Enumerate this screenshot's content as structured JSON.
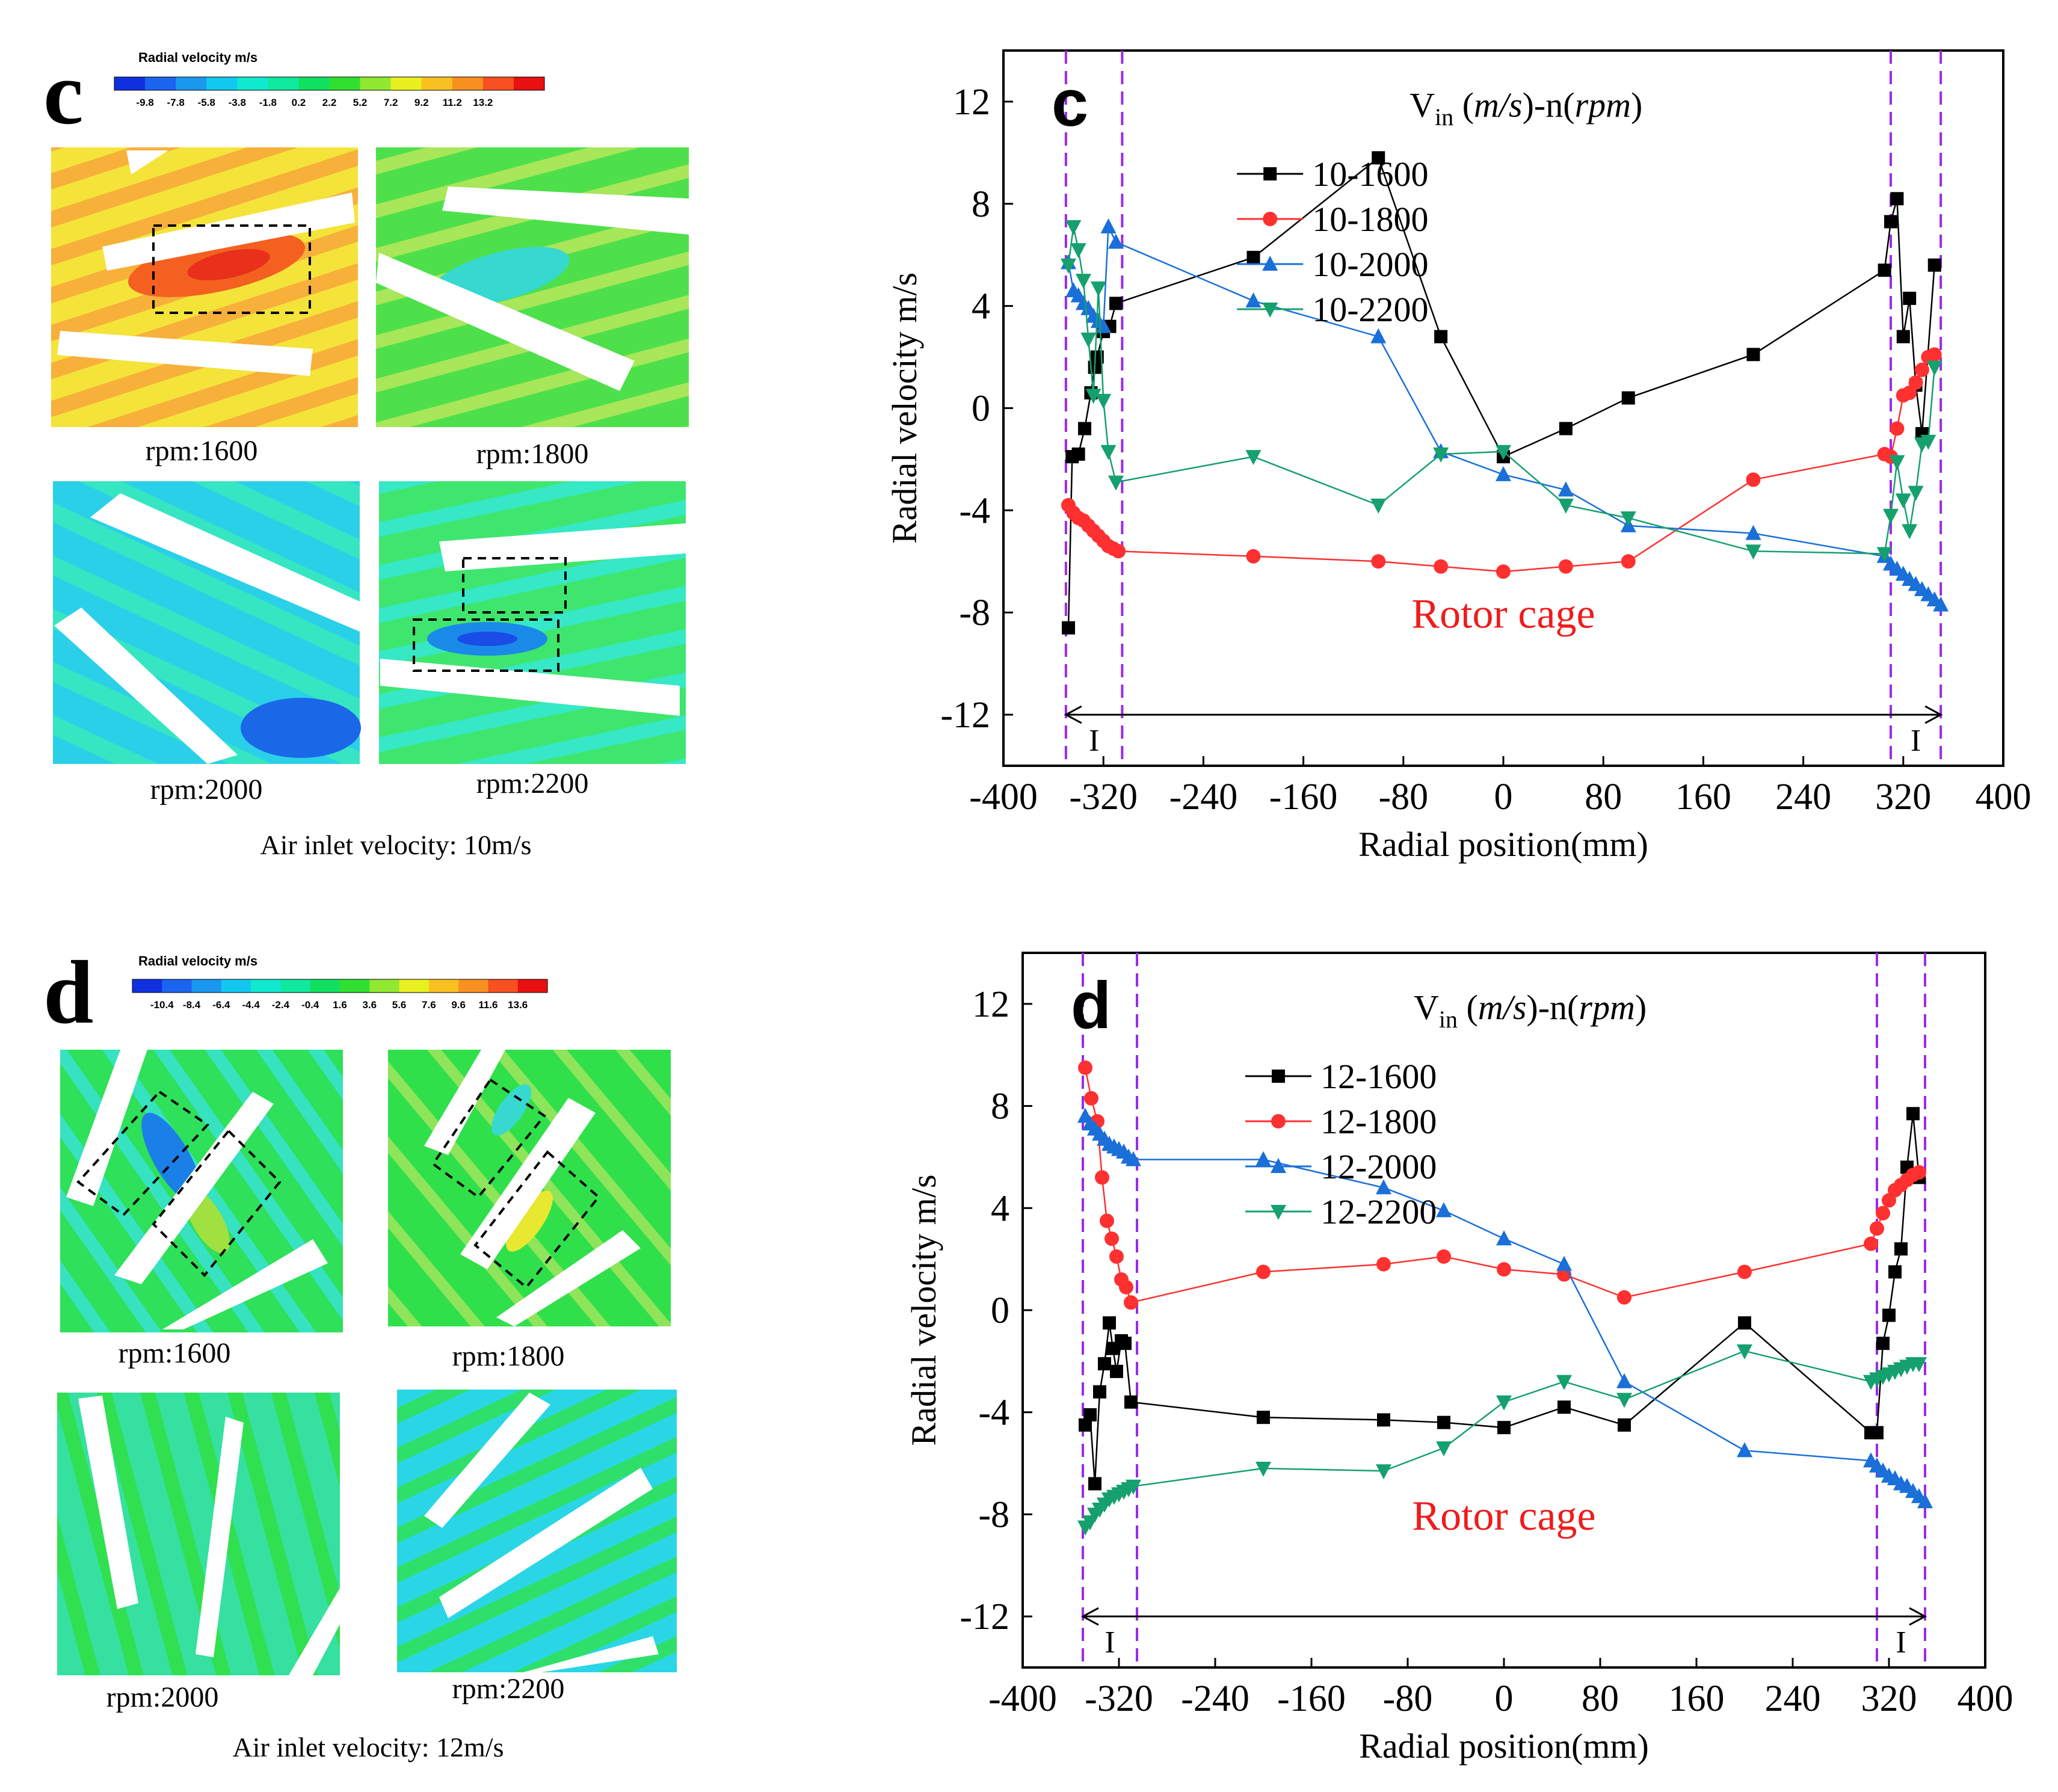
{
  "figure": {
    "panels": [
      {
        "letter": "c",
        "colorbar": {
          "title": "Radial velocity m/s",
          "ticks": [
            "-9.8",
            "-7.8",
            "-5.8",
            "-3.8",
            "-1.8",
            "0.2",
            "2.2",
            "5.2",
            "7.2",
            "9.2",
            "11.2",
            "13.2"
          ],
          "colors": [
            "#1030e0",
            "#1a64f0",
            "#1a98f0",
            "#12c8f0",
            "#10e8d0",
            "#10e8a0",
            "#10e060",
            "#30e030",
            "#90e830",
            "#e8f020",
            "#f8c020",
            "#f89020",
            "#f85020",
            "#e81010"
          ]
        },
        "contour_labels": [
          "rpm:1600",
          "rpm:1800",
          "rpm:2000",
          "rpm:2200"
        ],
        "caption": "Air inlet velocity: 10m/s"
      },
      {
        "letter": "d",
        "colorbar": {
          "title": "Radial velocity m/s",
          "ticks": [
            "-10.4",
            "-8.4",
            "-6.4",
            "-4.4",
            "-2.4",
            "-0.4",
            "1.6",
            "3.6",
            "5.6",
            "7.6",
            "9.6",
            "11.6",
            "13.6"
          ],
          "colors": [
            "#1030e0",
            "#1a64f0",
            "#1a98f0",
            "#12c8f0",
            "#10e8d0",
            "#10e8a0",
            "#10e060",
            "#30e030",
            "#90e830",
            "#e8f020",
            "#f8c020",
            "#f89020",
            "#f85020",
            "#e81010"
          ]
        },
        "contour_labels": [
          "rpm:1600",
          "rpm:1800",
          "rpm:2000",
          "rpm:2200"
        ],
        "caption": "Air inlet velocity: 12m/s"
      }
    ]
  },
  "chart_data": [
    {
      "type": "line",
      "panel_label": "c",
      "title": "",
      "xlabel": "Radial position(mm)",
      "ylabel": "Radial velocity m/s",
      "xlim": [
        -400,
        400
      ],
      "ylim": [
        -14,
        14
      ],
      "xticks": [
        -400,
        -320,
        -240,
        -160,
        -80,
        0,
        80,
        160,
        240,
        320,
        400
      ],
      "xtick_labels": [
        "-400",
        "-320",
        "-240",
        "-160",
        "-80",
        "0",
        "80",
        "160",
        "240",
        "320",
        "400"
      ],
      "yticks": [
        -12,
        -8,
        -4,
        0,
        4,
        8,
        12
      ],
      "ytick_labels": [
        "-12",
        "-8",
        "-4",
        "0",
        "4",
        "8",
        "12"
      ],
      "legend_title": {
        "pre": "V",
        "sub": "in",
        "mid": " (",
        "unit": "m/s",
        "post": ")-n(",
        "unit2": "rpm",
        "end": ")"
      },
      "annotation": "Rotor cage",
      "region_label_left": "I",
      "region_label_right": "I",
      "dashed_lines_x": [
        -350,
        -305,
        310,
        350
      ],
      "series": [
        {
          "name": "10-1600",
          "color": "#000000",
          "marker": "square",
          "x": [
            -348,
            -345,
            -340,
            -335,
            -330,
            -327,
            -325,
            -320,
            -315,
            -310,
            -200,
            -100,
            -50,
            0,
            50,
            100,
            200,
            305,
            310,
            315,
            320,
            325,
            330,
            335,
            345
          ],
          "y": [
            -8.6,
            -1.9,
            -1.8,
            -0.8,
            0.6,
            1.6,
            2.0,
            3.0,
            3.2,
            4.1,
            5.9,
            9.8,
            2.8,
            -1.9,
            -0.8,
            0.4,
            2.1,
            5.4,
            7.3,
            8.2,
            2.8,
            4.3,
            0.9,
            -1.0,
            5.6
          ]
        },
        {
          "name": "10-1800",
          "color": "#ff3030",
          "marker": "circle",
          "x": [
            -348,
            -344,
            -340,
            -336,
            -332,
            -328,
            -324,
            -320,
            -316,
            -312,
            -308,
            -200,
            -100,
            -50,
            0,
            50,
            100,
            200,
            305,
            310,
            315,
            320,
            325,
            330,
            335,
            340,
            345
          ],
          "y": [
            -3.8,
            -4.1,
            -4.3,
            -4.4,
            -4.6,
            -4.8,
            -5.0,
            -5.2,
            -5.4,
            -5.5,
            -5.6,
            -5.8,
            -6.0,
            -6.2,
            -6.4,
            -6.2,
            -6.0,
            -2.8,
            -1.8,
            -1.9,
            -0.8,
            0.5,
            0.6,
            1.0,
            1.5,
            2.0,
            2.1
          ]
        },
        {
          "name": "10-2000",
          "color": "#1a6fd8",
          "marker": "triangle-up",
          "x": [
            -348,
            -344,
            -340,
            -336,
            -332,
            -328,
            -324,
            -320,
            -316,
            -310,
            -200,
            -100,
            -50,
            0,
            50,
            100,
            200,
            305,
            310,
            315,
            320,
            325,
            330,
            335,
            340,
            345,
            350
          ],
          "y": [
            5.7,
            4.6,
            4.4,
            4.1,
            3.9,
            3.6,
            3.4,
            3.2,
            7.1,
            6.5,
            4.2,
            2.8,
            -1.7,
            -2.6,
            -3.2,
            -4.6,
            -4.9,
            -5.8,
            -6.1,
            -6.3,
            -6.5,
            -6.7,
            -6.9,
            -7.1,
            -7.3,
            -7.5,
            -7.7
          ]
        },
        {
          "name": "10-2200",
          "color": "#15a06e",
          "marker": "triangle-down",
          "x": [
            -348,
            -344,
            -340,
            -336,
            -332,
            -328,
            -324,
            -320,
            -316,
            -310,
            -200,
            -100,
            -50,
            0,
            50,
            100,
            200,
            305,
            310,
            315,
            320,
            325,
            330,
            335,
            340,
            345
          ],
          "y": [
            5.6,
            7.1,
            6.2,
            5.0,
            2.7,
            0.5,
            4.7,
            0.3,
            -1.7,
            -2.9,
            -1.9,
            -3.8,
            -1.8,
            -1.7,
            -3.8,
            -4.3,
            -5.6,
            -5.7,
            -4.2,
            -2.1,
            -3.6,
            -4.8,
            -3.3,
            -1.4,
            -1.3,
            1.6
          ]
        }
      ]
    },
    {
      "type": "line",
      "panel_label": "d",
      "title": "",
      "xlabel": "Radial position(mm)",
      "ylabel": "Radial velocity m/s",
      "xlim": [
        -400,
        400
      ],
      "ylim": [
        -14,
        14
      ],
      "xticks": [
        -400,
        -320,
        -240,
        -160,
        -80,
        0,
        80,
        160,
        240,
        320,
        400
      ],
      "xtick_labels": [
        "-400",
        "-320",
        "-240",
        "-160",
        "-80",
        "0",
        "80",
        "160",
        "240",
        "320",
        "400"
      ],
      "yticks": [
        -12,
        -8,
        -4,
        0,
        4,
        8,
        12
      ],
      "ytick_labels": [
        "-12",
        "-8",
        "-4",
        "0",
        "4",
        "8",
        "12"
      ],
      "legend_title": {
        "pre": "V",
        "sub": "in",
        "mid": " (",
        "unit": "m/s",
        "post": ")-n(",
        "unit2": "rpm",
        "end": ")"
      },
      "annotation": "Rotor cage",
      "region_label_left": "I",
      "region_label_right": "I",
      "dashed_lines_x": [
        -350,
        -305,
        310,
        350
      ],
      "series": [
        {
          "name": "12-1600",
          "color": "#000000",
          "marker": "square",
          "x": [
            -348,
            -344,
            -340,
            -336,
            -332,
            -328,
            -325,
            -322,
            -318,
            -315,
            -310,
            -200,
            -100,
            -50,
            0,
            50,
            100,
            200,
            305,
            310,
            315,
            320,
            325,
            330,
            335,
            340,
            345
          ],
          "y": [
            -4.5,
            -4.1,
            -6.8,
            -3.2,
            -2.1,
            -0.5,
            -1.5,
            -2.4,
            -1.2,
            -1.3,
            -3.6,
            -4.2,
            -4.3,
            -4.4,
            -4.6,
            -3.8,
            -4.5,
            -0.5,
            -4.8,
            -4.8,
            -1.3,
            -0.2,
            1.5,
            2.4,
            5.6,
            7.7,
            5.2
          ]
        },
        {
          "name": "12-1800",
          "color": "#ff3030",
          "marker": "circle",
          "x": [
            -348,
            -343,
            -338,
            -334,
            -330,
            -326,
            -322,
            -318,
            -314,
            -310,
            -200,
            -100,
            -50,
            0,
            50,
            100,
            200,
            305,
            310,
            315,
            320,
            325,
            330,
            335,
            340,
            345
          ],
          "y": [
            9.5,
            8.3,
            7.4,
            5.2,
            3.5,
            2.8,
            2.1,
            1.2,
            0.9,
            0.3,
            1.5,
            1.8,
            2.1,
            1.6,
            1.4,
            0.5,
            1.5,
            2.6,
            3.2,
            3.8,
            4.3,
            4.7,
            4.9,
            5.1,
            5.3,
            5.4
          ]
        },
        {
          "name": "12-2000",
          "color": "#1a6fd8",
          "marker": "triangle-up",
          "x": [
            -348,
            -344,
            -340,
            -336,
            -332,
            -328,
            -324,
            -320,
            -316,
            -312,
            -308,
            -200,
            -100,
            -50,
            0,
            50,
            100,
            200,
            305,
            310,
            315,
            320,
            325,
            330,
            335,
            340,
            345,
            350
          ],
          "y": [
            7.6,
            7.3,
            7.1,
            6.9,
            6.7,
            6.5,
            6.4,
            6.3,
            6.2,
            6.0,
            5.9,
            5.9,
            4.8,
            3.9,
            2.8,
            1.8,
            -2.8,
            -5.5,
            -5.9,
            -6.1,
            -6.3,
            -6.5,
            -6.6,
            -6.8,
            -6.9,
            -7.1,
            -7.3,
            -7.5
          ]
        },
        {
          "name": "12-2200",
          "color": "#15a06e",
          "marker": "triangle-down",
          "x": [
            -348,
            -344,
            -340,
            -336,
            -332,
            -328,
            -324,
            -320,
            -316,
            -312,
            -308,
            -200,
            -100,
            -50,
            0,
            50,
            100,
            200,
            305,
            310,
            315,
            320,
            325,
            330,
            335,
            340,
            345
          ],
          "y": [
            -8.5,
            -8.3,
            -8.0,
            -7.8,
            -7.6,
            -7.4,
            -7.3,
            -7.2,
            -7.1,
            -7.0,
            -6.9,
            -6.2,
            -6.3,
            -5.4,
            -3.6,
            -2.8,
            -3.5,
            -1.6,
            -2.8,
            -2.7,
            -2.6,
            -2.5,
            -2.4,
            -2.3,
            -2.2,
            -2.1,
            -2.1
          ]
        }
      ]
    }
  ]
}
